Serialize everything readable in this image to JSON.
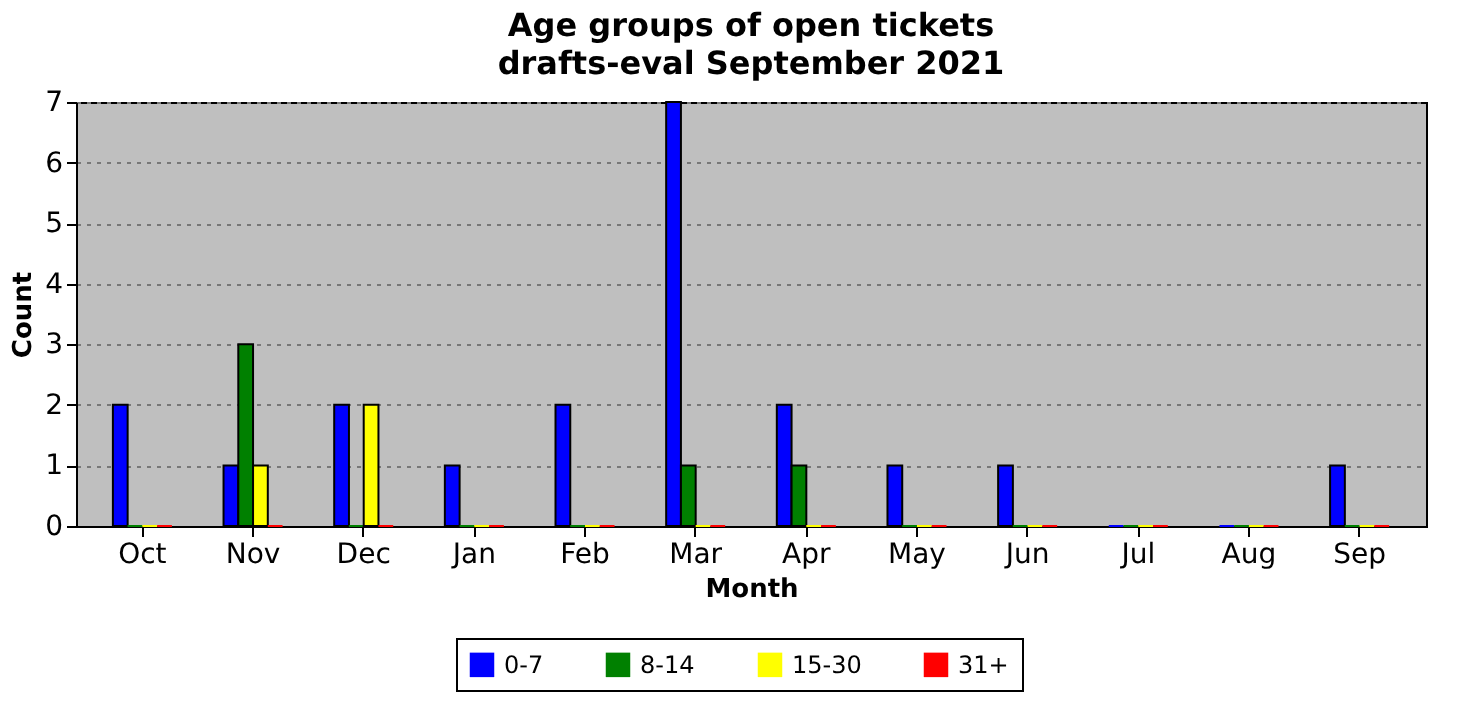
{
  "chart_data": {
    "type": "bar",
    "title": "Age groups of open tickets",
    "subtitle": "drafts-eval September 2021",
    "xlabel": "Month",
    "ylabel": "Count",
    "categories": [
      "Oct",
      "Nov",
      "Dec",
      "Jan",
      "Feb",
      "Mar",
      "Apr",
      "May",
      "Jun",
      "Jul",
      "Aug",
      "Sep"
    ],
    "series": [
      {
        "name": "0-7",
        "color": "#0000ff",
        "values": [
          2,
          1,
          2,
          1,
          2,
          7,
          2,
          1,
          1,
          0,
          0,
          1
        ]
      },
      {
        "name": "8-14",
        "color": "#008000",
        "values": [
          0,
          3,
          0,
          0,
          0,
          1,
          1,
          0,
          0,
          0,
          0,
          0
        ]
      },
      {
        "name": "15-30",
        "color": "#ffff00",
        "values": [
          0,
          1,
          2,
          0,
          0,
          0,
          0,
          0,
          0,
          0,
          0,
          0
        ]
      },
      {
        "name": "31+",
        "color": "#ff0000",
        "values": [
          0,
          0,
          0,
          0,
          0,
          0,
          0,
          0,
          0,
          0,
          0,
          0
        ]
      }
    ],
    "ylim": [
      0,
      7
    ],
    "yticks": [
      0,
      1,
      2,
      3,
      4,
      5,
      6,
      7
    ],
    "grid": "y",
    "legend": "bottom"
  }
}
